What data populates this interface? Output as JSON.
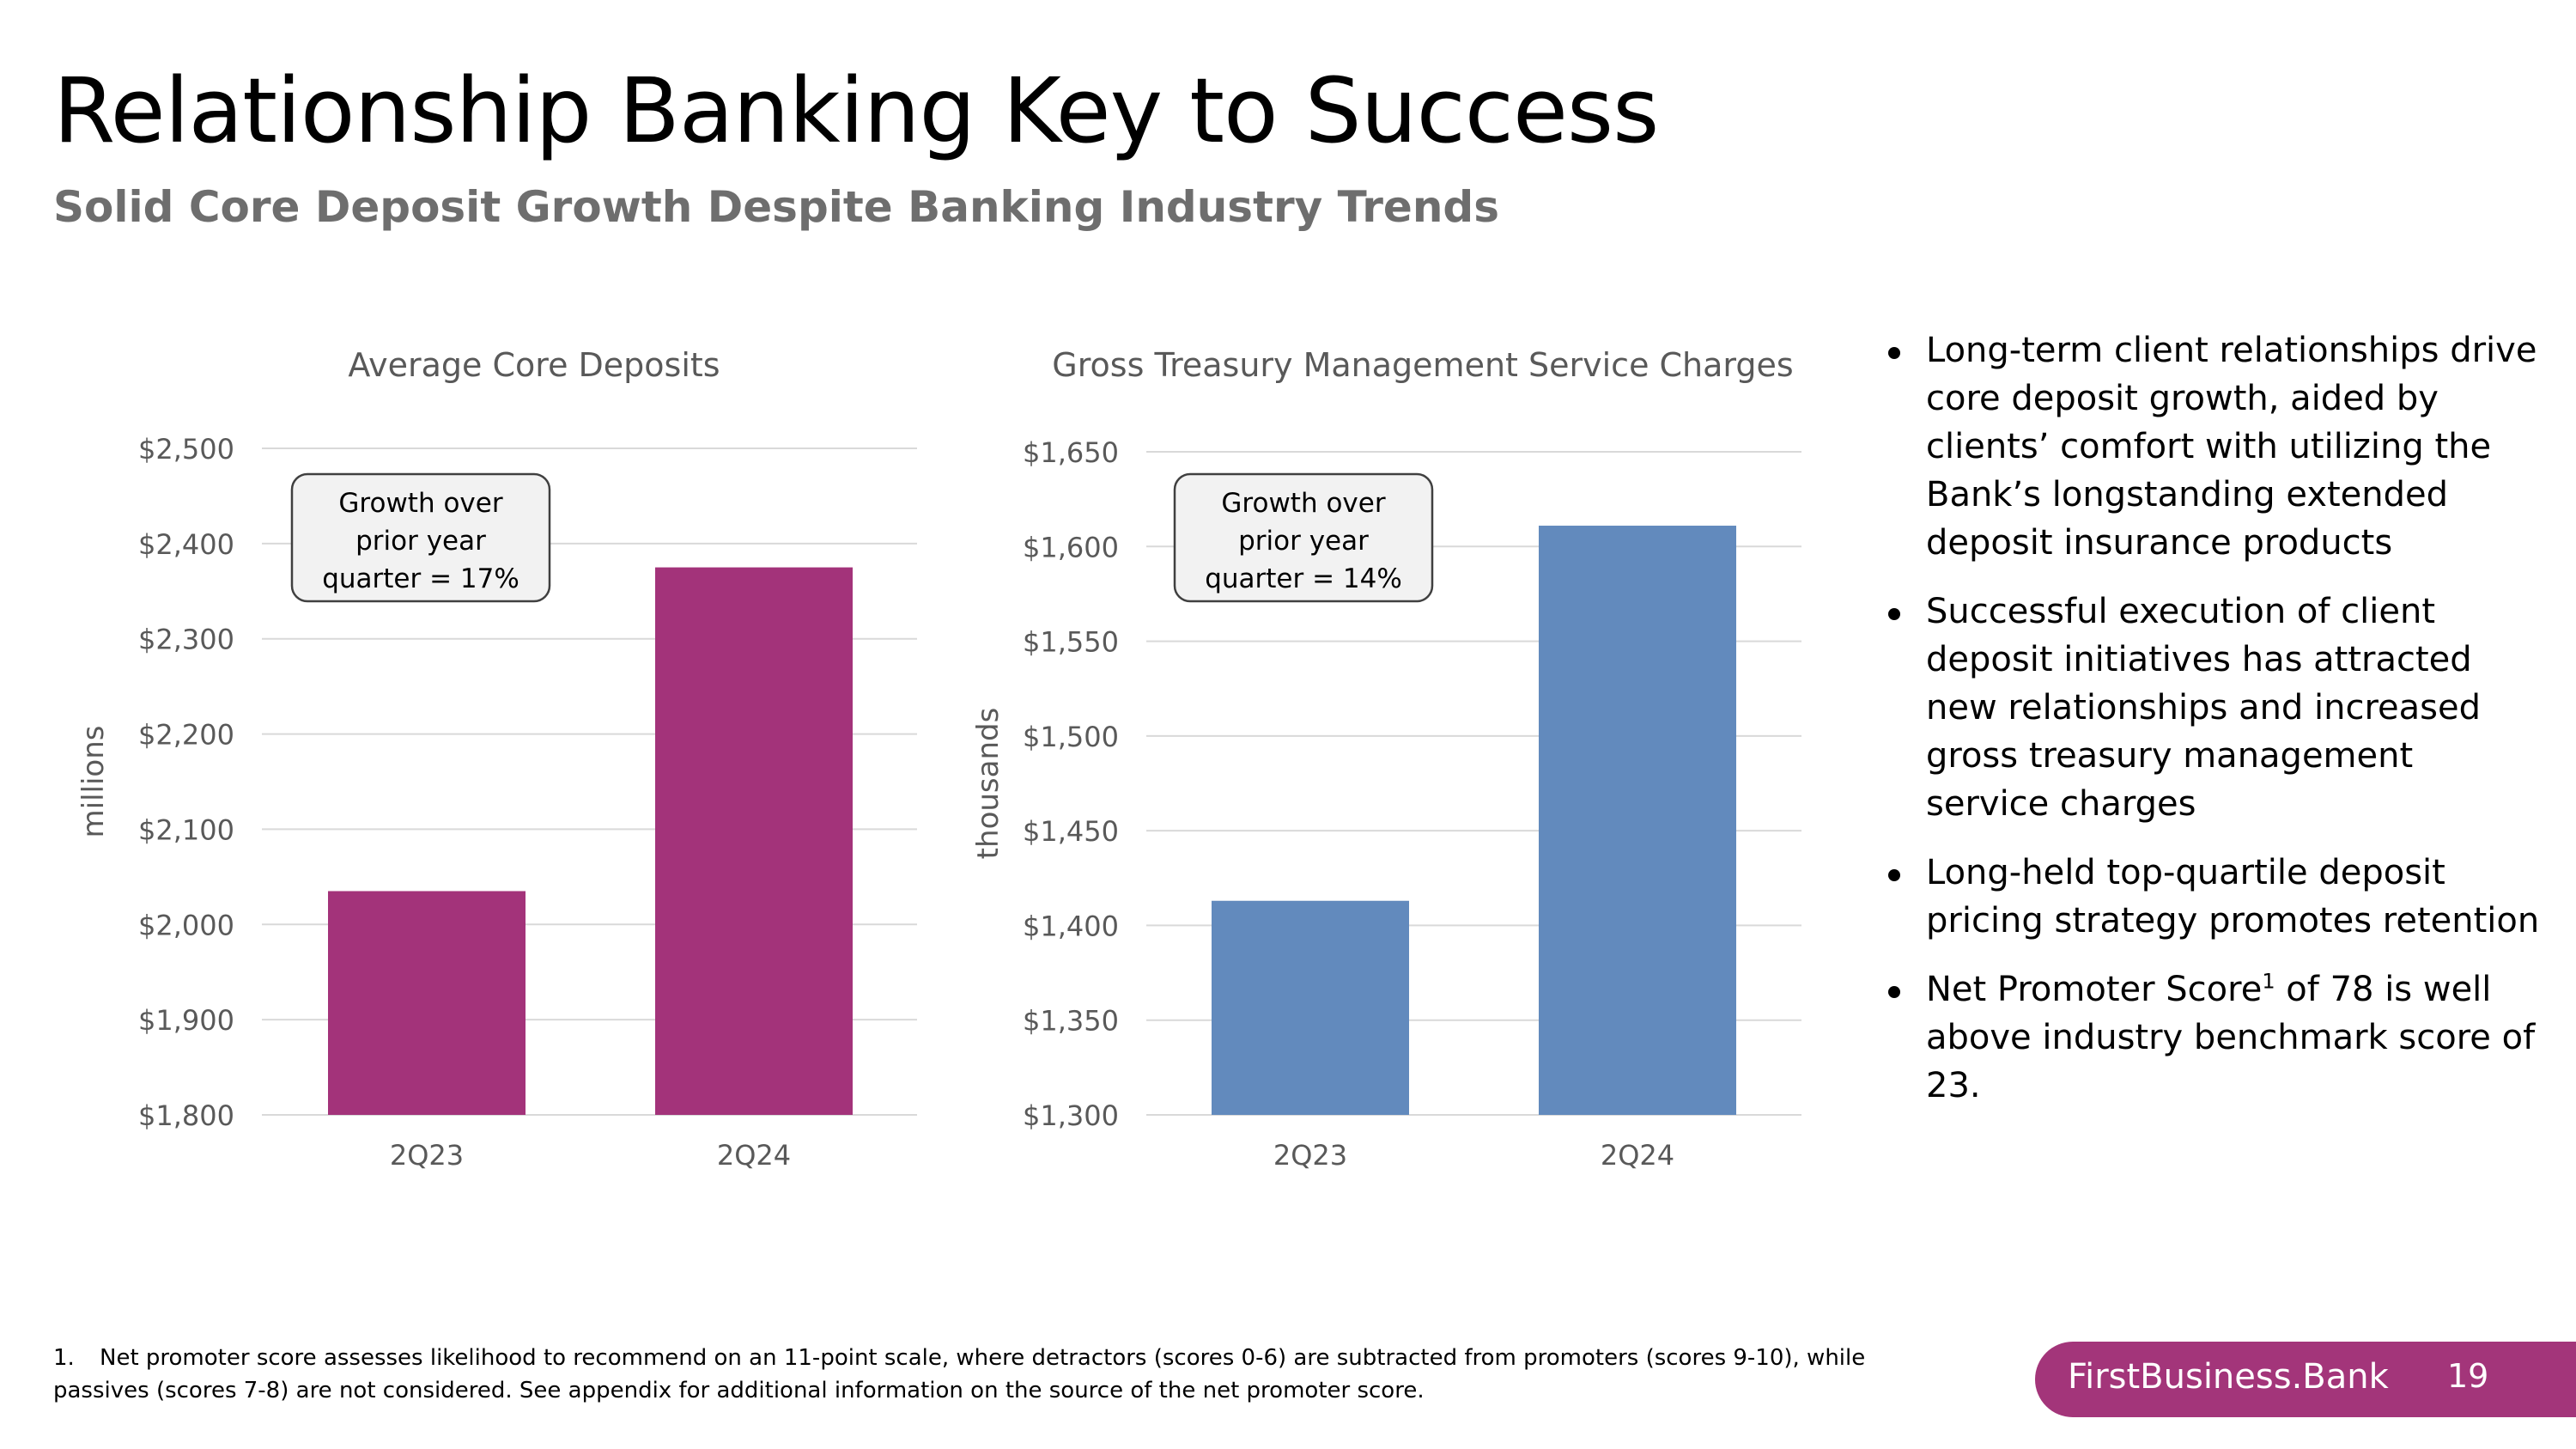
{
  "slide": {
    "title": "Relationship Banking Key to Success",
    "subtitle": "Solid Core Deposit Growth Despite Banking Industry Trends",
    "bullets": [
      {
        "text": "Long-term client relationships drive core deposit growth, aided by clients’ comfort with utilizing the Bank’s longstanding extended deposit insurance products"
      },
      {
        "text": "Successful execution of client deposit initiatives has attracted new relationships and increased gross treasury management service charges"
      },
      {
        "text": "Long-held top-quartile deposit pricing strategy promotes retention"
      },
      {
        "text_before": "Net Promoter Score",
        "sup": "1",
        "text_after": " of 78 is well above industry benchmark score of 23."
      }
    ],
    "footnote": {
      "number": "1.",
      "text": "Net promoter score assesses likelihood to recommend on an 11-point scale, where detractors (scores 0-6) are subtracted from promoters (scores 9-10), while passives (scores 7-8) are not considered. See appendix for additional information on the source of the net promoter score."
    },
    "brand": "FirstBusiness.Bank",
    "page_number": "19"
  },
  "chart_data": [
    {
      "type": "bar",
      "title": "Average Core Deposits",
      "xlabel": "",
      "ylabel": "millions",
      "categories": [
        "2Q23",
        "2Q24"
      ],
      "values": [
        2035,
        2375
      ],
      "ylim": [
        1800,
        2500
      ],
      "yticks": [
        1800,
        1900,
        2000,
        2100,
        2200,
        2300,
        2400,
        2500
      ],
      "ytick_labels": [
        "$1,800",
        "$1,900",
        "$2,000",
        "$2,100",
        "$2,200",
        "$2,300",
        "$2,400",
        "$2,500"
      ],
      "grid": true,
      "bar_color": "#a3337a",
      "callout_lines": [
        "Growth over",
        "prior year",
        "quarter = 17%"
      ]
    },
    {
      "type": "bar",
      "title": "Gross Treasury Management Service Charges",
      "xlabel": "",
      "ylabel": "thousands",
      "categories": [
        "2Q23",
        "2Q24"
      ],
      "values": [
        1413,
        1611
      ],
      "ylim": [
        1300,
        1650
      ],
      "yticks": [
        1300,
        1350,
        1400,
        1450,
        1500,
        1550,
        1600,
        1650
      ],
      "ytick_labels": [
        "$1,300",
        "$1,350",
        "$1,400",
        "$1,450",
        "$1,500",
        "$1,550",
        "$1,600",
        "$1,650"
      ],
      "grid": true,
      "bar_color": "#628abd",
      "callout_lines": [
        "Growth over",
        "prior year",
        "quarter = 14%"
      ]
    }
  ]
}
